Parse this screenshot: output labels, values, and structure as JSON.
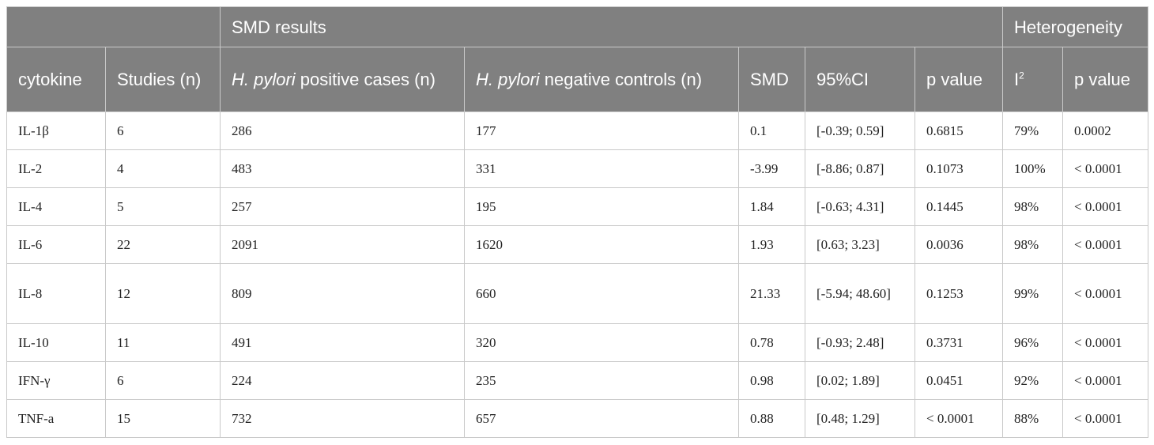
{
  "table": {
    "group_headers": {
      "blank": "",
      "smd_results": "SMD results",
      "heterogeneity": "Heterogeneity"
    },
    "columns": {
      "cytokine": "cytokine",
      "studies": "Studies (n)",
      "positive_italic": "H. pylori",
      "positive_rest": " positive cases (n)",
      "negative_italic": "H. pylori",
      "negative_rest": " negative controls (n)",
      "smd": "SMD",
      "ci": "95%CI",
      "p_value": "p value",
      "i2_base": "I",
      "i2_sup": "2",
      "het_p_value": "p value"
    },
    "rows": [
      {
        "cytokine": "IL-1β",
        "studies": "6",
        "positive": "286",
        "negative": "177",
        "smd": "0.1",
        "ci": "[-0.39; 0.59]",
        "p": "0.6815",
        "i2": "79%",
        "het_p": "0.0002"
      },
      {
        "cytokine": "IL-2",
        "studies": "4",
        "positive": "483",
        "negative": "331",
        "smd": "-3.99",
        "ci": "[-8.86; 0.87]",
        "p": "0.1073",
        "i2": "100%",
        "het_p": "< 0.0001"
      },
      {
        "cytokine": "IL-4",
        "studies": "5",
        "positive": "257",
        "negative": "195",
        "smd": "1.84",
        "ci": "[-0.63; 4.31]",
        "p": "0.1445",
        "i2": "98%",
        "het_p": "< 0.0001"
      },
      {
        "cytokine": "IL-6",
        "studies": "22",
        "positive": "2091",
        "negative": "1620",
        "smd": "1.93",
        "ci": "[0.63; 3.23]",
        "p": "0.0036",
        "i2": "98%",
        "het_p": "< 0.0001"
      },
      {
        "cytokine": "IL-8",
        "studies": "12",
        "positive": "809",
        "negative": "660",
        "smd": "21.33",
        "ci": "[-5.94; 48.60]",
        "p": "0.1253",
        "i2": "99%",
        "het_p": "< 0.0001"
      },
      {
        "cytokine": "IL-10",
        "studies": "11",
        "positive": "491",
        "negative": "320",
        "smd": "0.78",
        "ci": "[-0.93; 2.48]",
        "p": "0.3731",
        "i2": "96%",
        "het_p": "< 0.0001"
      },
      {
        "cytokine": "IFN-γ",
        "studies": "6",
        "positive": "224",
        "negative": "235",
        "smd": "0.98",
        "ci": "[0.02; 1.89]",
        "p": "0.0451",
        "i2": "92%",
        "het_p": "< 0.0001"
      },
      {
        "cytokine": "TNF-a",
        "studies": "15",
        "positive": "732",
        "negative": "657",
        "smd": "0.88",
        "ci": "[0.48; 1.29]",
        "p": "< 0.0001",
        "i2": "88%",
        "het_p": "< 0.0001"
      }
    ]
  }
}
